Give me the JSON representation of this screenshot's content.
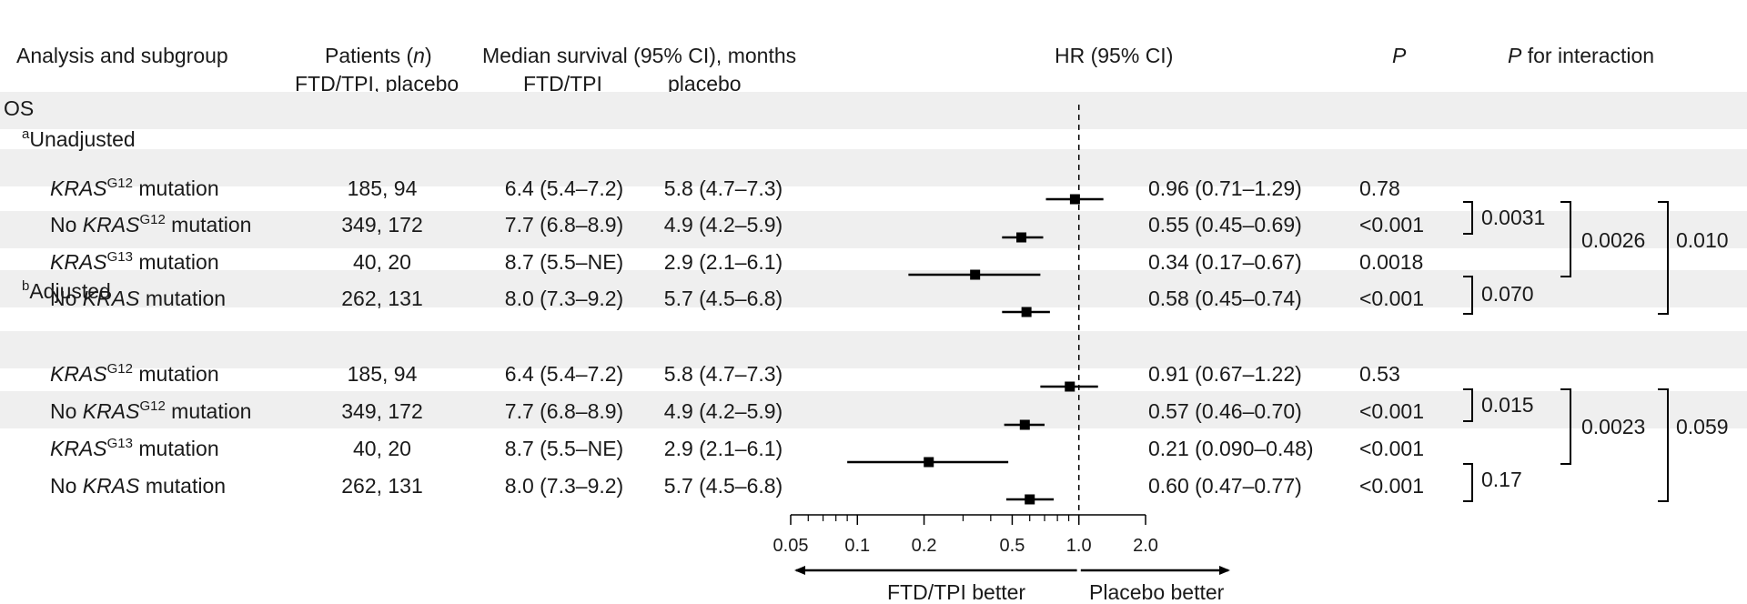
{
  "header": {
    "col_analysis": "Analysis and subgroup",
    "col_patients_prefix": "Patients (",
    "col_patients_n": "n",
    "col_patients_suffix": ")",
    "col_patients_sub": "FTD/TPI, placebo",
    "col_median": "Median survival (95% CI), months",
    "col_median_sub1": "FTD/TPI",
    "col_median_sub2": "placebo",
    "col_hr": "HR (95% CI)",
    "col_p": "P",
    "col_interaction_italic": "P",
    "col_interaction_rest": " for interaction"
  },
  "sections": {
    "os": "OS",
    "unadjusted_mark": "a",
    "unadjusted": "Unadjusted",
    "adjusted_mark": "b",
    "adjusted": "Adjusted"
  },
  "rows": [
    {
      "prefix": "",
      "gene": "KRAS",
      "sup": "G12",
      "suffix": " mutation",
      "patients": "185, 94",
      "ftd": "6.4 (5.4–7.2)",
      "placebo": "5.8 (4.7–7.3)",
      "hr_text": "0.96 (0.71–1.29)",
      "p": "0.78"
    },
    {
      "prefix": "No ",
      "gene": "KRAS",
      "sup": "G12",
      "suffix": " mutation",
      "patients": "349, 172",
      "ftd": "7.7 (6.8–8.9)",
      "placebo": "4.9 (4.2–5.9)",
      "hr_text": "0.55 (0.45–0.69)",
      "p": "<0.001"
    },
    {
      "prefix": "",
      "gene": "KRAS",
      "sup": "G13",
      "suffix": " mutation",
      "patients": "40, 20",
      "ftd": "8.7 (5.5–NE)",
      "placebo": "2.9 (2.1–6.1)",
      "hr_text": "0.34 (0.17–0.67)",
      "p": "0.0018"
    },
    {
      "prefix": "No ",
      "gene": "KRAS",
      "sup": "",
      "suffix": " mutation",
      "patients": "262, 131",
      "ftd": "8.0 (7.3–9.2)",
      "placebo": "5.7 (4.5–6.8)",
      "hr_text": "0.58 (0.45–0.74)",
      "p": "<0.001"
    },
    {
      "prefix": "",
      "gene": "KRAS",
      "sup": "G12",
      "suffix": " mutation",
      "patients": "185, 94",
      "ftd": "6.4 (5.4–7.2)",
      "placebo": "5.8 (4.7–7.3)",
      "hr_text": "0.91 (0.67–1.22)",
      "p": "0.53"
    },
    {
      "prefix": "No ",
      "gene": "KRAS",
      "sup": "G12",
      "suffix": " mutation",
      "patients": "349, 172",
      "ftd": "7.7 (6.8–8.9)",
      "placebo": "4.9 (4.2–5.9)",
      "hr_text": "0.57 (0.46–0.70)",
      "p": "<0.001"
    },
    {
      "prefix": "",
      "gene": "KRAS",
      "sup": "G13",
      "suffix": " mutation",
      "patients": "40, 20",
      "ftd": "8.7 (5.5–NE)",
      "placebo": "2.9 (2.1–6.1)",
      "hr_text": "0.21 (0.090–0.48)",
      "p": "<0.001"
    },
    {
      "prefix": "No ",
      "gene": "KRAS",
      "sup": "",
      "suffix": " mutation",
      "patients": "262, 131",
      "ftd": "8.0 (7.3–9.2)",
      "placebo": "5.7 (4.5–6.8)",
      "hr_text": "0.60 (0.47–0.77)",
      "p": "<0.001"
    }
  ],
  "interaction": {
    "unadjusted": {
      "g12_pair": "0.0031",
      "g13_pair": "0.070",
      "outer": "0.0026",
      "overall": "0.010"
    },
    "adjusted": {
      "g12_pair": "0.015",
      "g13_pair": "0.17",
      "outer": "0.0023",
      "overall": "0.059"
    }
  },
  "chart_data": {
    "type": "forest",
    "scale": "log",
    "xlim": [
      0.05,
      2.0
    ],
    "reference_line": 1.0,
    "ticks": [
      0.05,
      0.1,
      0.2,
      0.5,
      1.0,
      2.0
    ],
    "tick_labels": [
      "0.05",
      "0.1",
      "0.2",
      "0.5",
      "1.0",
      "2.0"
    ],
    "minor_ticks": [
      0.06,
      0.07,
      0.08,
      0.09,
      0.3,
      0.4,
      0.6,
      0.7,
      0.8,
      0.9
    ],
    "left_label": "FTD/TPI better",
    "right_label": "Placebo better",
    "series": [
      {
        "name": "Unadjusted",
        "rows": [
          {
            "label": "KRAS G12 mutation",
            "hr": 0.96,
            "lo": 0.71,
            "hi": 1.29
          },
          {
            "label": "No KRAS G12 mutation",
            "hr": 0.55,
            "lo": 0.45,
            "hi": 0.69
          },
          {
            "label": "KRAS G13 mutation",
            "hr": 0.34,
            "lo": 0.17,
            "hi": 0.67
          },
          {
            "label": "No KRAS mutation",
            "hr": 0.58,
            "lo": 0.45,
            "hi": 0.74
          }
        ]
      },
      {
        "name": "Adjusted",
        "rows": [
          {
            "label": "KRAS G12 mutation",
            "hr": 0.91,
            "lo": 0.67,
            "hi": 1.22
          },
          {
            "label": "No KRAS G12 mutation",
            "hr": 0.57,
            "lo": 0.46,
            "hi": 0.7
          },
          {
            "label": "KRAS G13 mutation",
            "hr": 0.21,
            "lo": 0.09,
            "hi": 0.48
          },
          {
            "label": "No KRAS mutation",
            "hr": 0.6,
            "lo": 0.47,
            "hi": 0.77
          }
        ]
      }
    ]
  }
}
